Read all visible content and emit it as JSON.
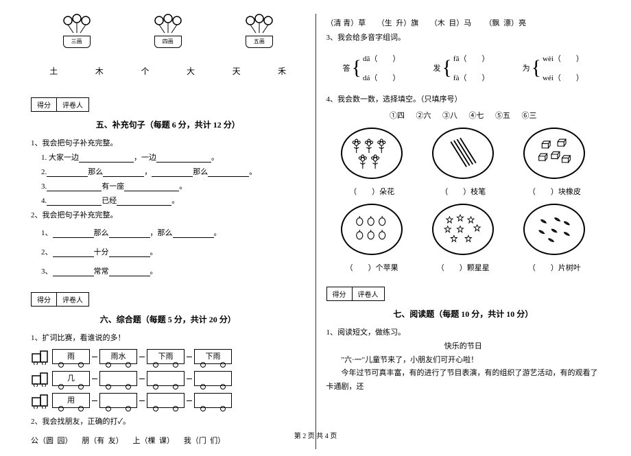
{
  "pots": [
    "三画",
    "四画",
    "五画"
  ],
  "chars": [
    "土",
    "木",
    "个",
    "大",
    "天",
    "禾"
  ],
  "scoreBox": {
    "score": "得分",
    "reviewer": "评卷人"
  },
  "section5": {
    "title": "五、补充句子（每题 6 分，共计 12 分）",
    "q1": "1、我会把句子补充完整。",
    "s1": "1. 大家一边",
    "s1b": "，一边",
    "s2": "2.",
    "s2a": "那么",
    "s2b": "，",
    "s2c": "那么",
    "s3": "3.",
    "s3a": "有一座",
    "s4": "4.",
    "s4a": "已经",
    "q2": "2、我会把句子补充完整。",
    "r1": "1、",
    "r1a": "那么",
    "r1b": "，那么",
    "r2": "2、",
    "r2a": "十分",
    "r3": "3、",
    "r3a": "常常"
  },
  "section6": {
    "title": "六、综合题（每题 5 分，共计 20 分）",
    "q1": "1、扩词比赛，看谁说的多！",
    "trains": [
      {
        "head": "雨",
        "cars": [
          "雨水",
          "下雨",
          "下雨"
        ]
      },
      {
        "head": "几",
        "cars": [
          "",
          "",
          ""
        ]
      },
      {
        "head": "用",
        "cars": [
          "",
          "",
          ""
        ]
      }
    ],
    "q2": "2、我会找朋友，正确的打✓。",
    "pairs": "公（圆  园）     朋（有  友）     上（棵  课）     我（门  们）"
  },
  "rightTop": {
    "line1": "（清 青）草      （生  升）旗      （木  目）马       （飘  漂）亮",
    "q3": "3、我会给多音字组词。"
  },
  "pinyin": [
    {
      "char": "答",
      "top": "dā（",
      "bot": "dá（"
    },
    {
      "char": "发",
      "top": "fā（",
      "bot": "fà（"
    },
    {
      "char": "为",
      "top": "wèi（",
      "bot": "wéi（"
    }
  ],
  "q4": {
    "text": "4、我会数一数，选择填空。（只填序号）",
    "options": "①四      ②六      ③八      ④七      ⑤五      ⑥三"
  },
  "circleLabels1": [
    "（　　）朵花",
    "（　　）枝笔",
    "（　　）块橡皮"
  ],
  "circleLabels2": [
    "（　　）个苹果",
    "（　　）颗星星",
    "（　　）片树叶"
  ],
  "section7": {
    "title": "七、阅读题（每题 10 分，共计 10 分）",
    "q1": "1、阅读短文，做练习。",
    "title2": "快乐的节日",
    "p1": "\"六·一\"儿童节来了，小朋友们可开心啦！",
    "p2": "今年过节可真丰富，有的进行了节目表演，有的组织了游艺活动，有的观看了卡通剧，还"
  },
  "footer": "第 2 页  共 4 页"
}
